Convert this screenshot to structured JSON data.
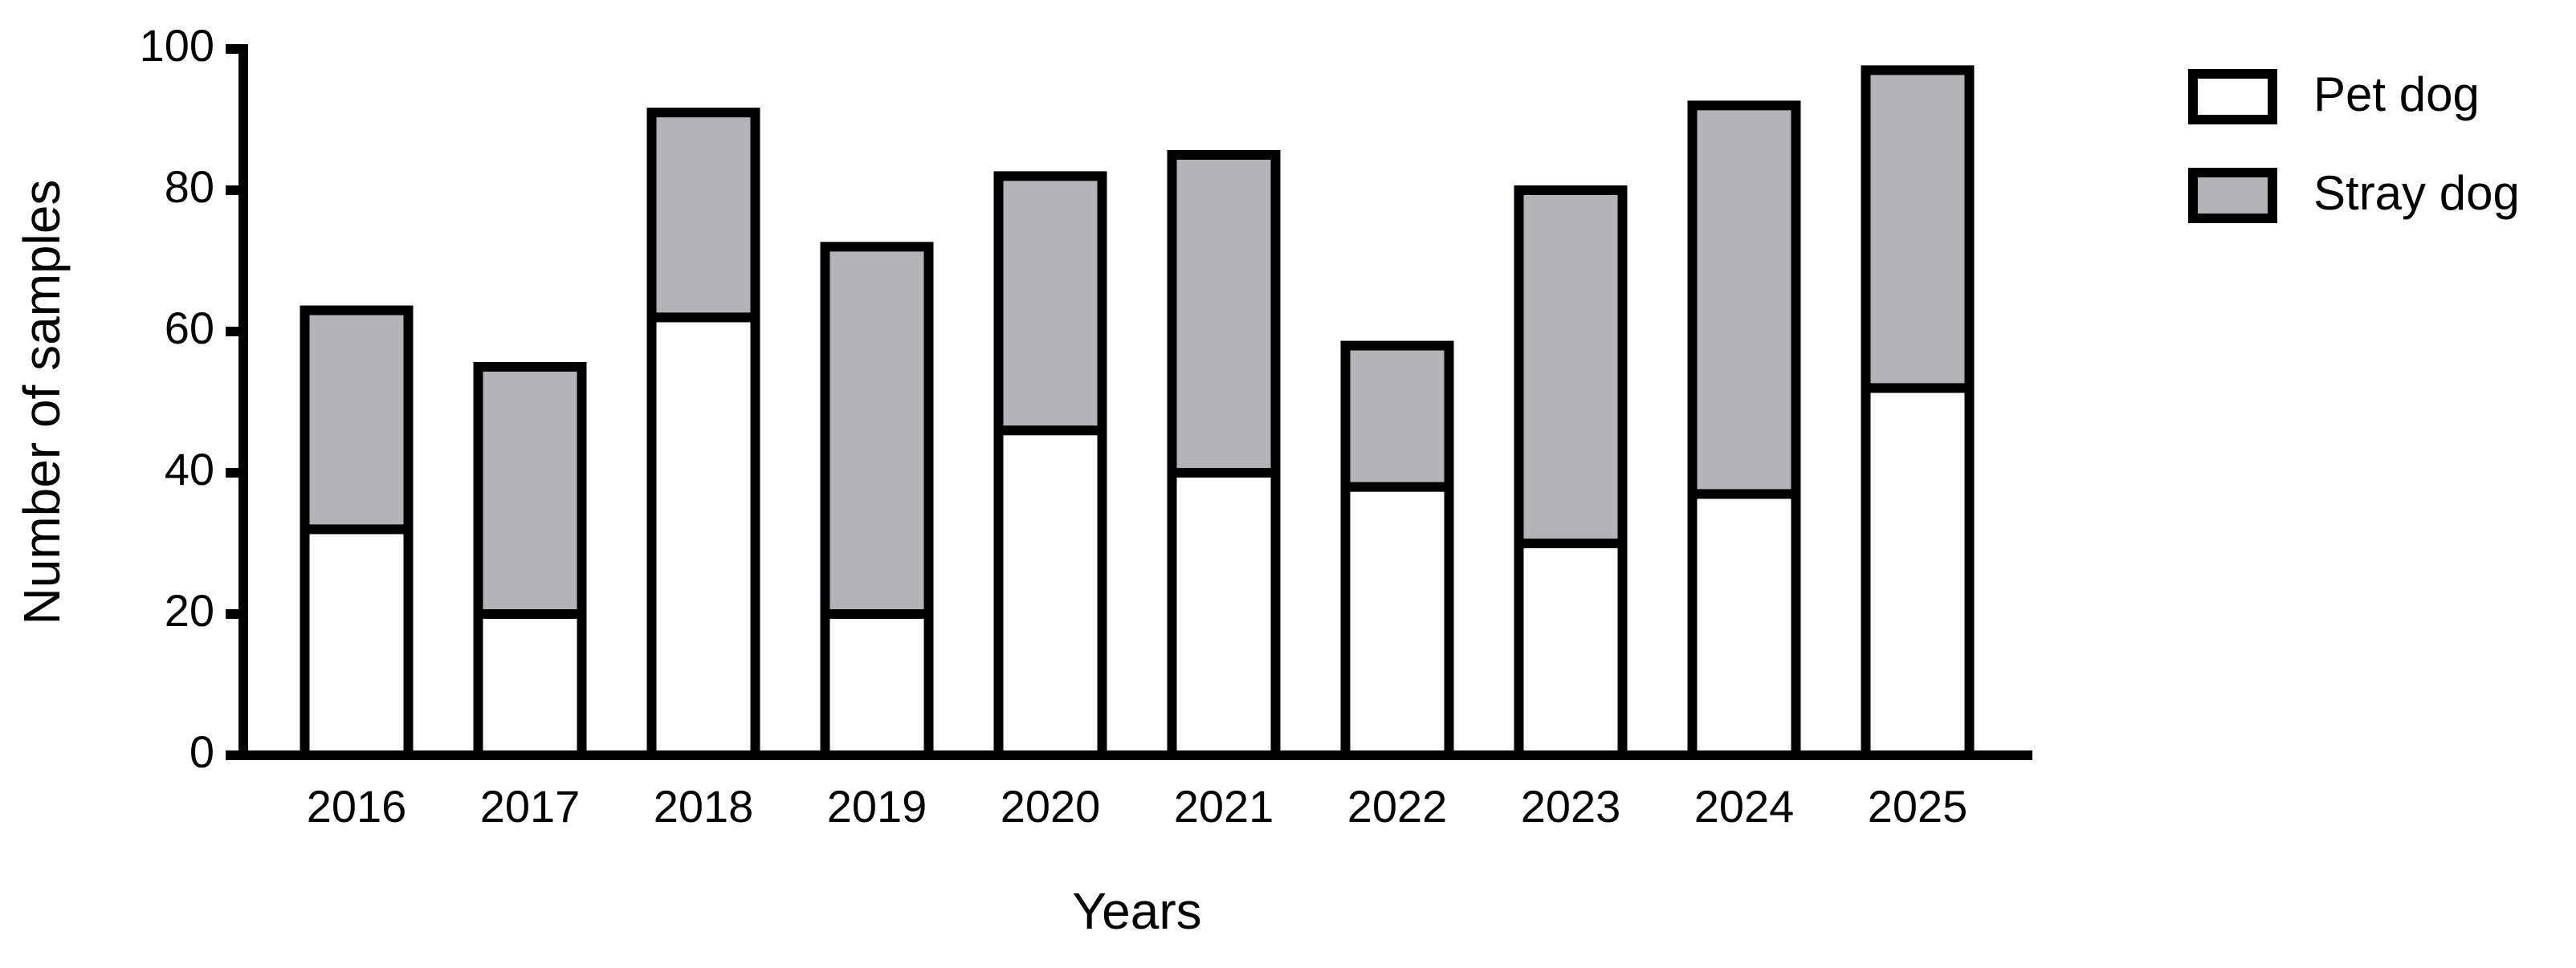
{
  "chart_data": {
    "type": "stacked_bar",
    "xlabel": "Years",
    "ylabel": "Number of samples",
    "categories": [
      "2016",
      "2017",
      "2018",
      "2019",
      "2020",
      "2021",
      "2022",
      "2023",
      "2024",
      "2025"
    ],
    "series": [
      {
        "name": "Pet dog",
        "color": "#ffffff",
        "values": [
          32,
          20,
          62,
          20,
          46,
          40,
          38,
          30,
          37,
          52
        ]
      },
      {
        "name": "Stray dog",
        "color": "#b3b3b6",
        "values": [
          31,
          35,
          29,
          52,
          36,
          45,
          20,
          50,
          55,
          45
        ]
      }
    ],
    "ylim": [
      0,
      100
    ],
    "yticks": [
      0,
      20,
      40,
      60,
      80,
      100
    ],
    "grid": false,
    "legend": "upper right"
  }
}
